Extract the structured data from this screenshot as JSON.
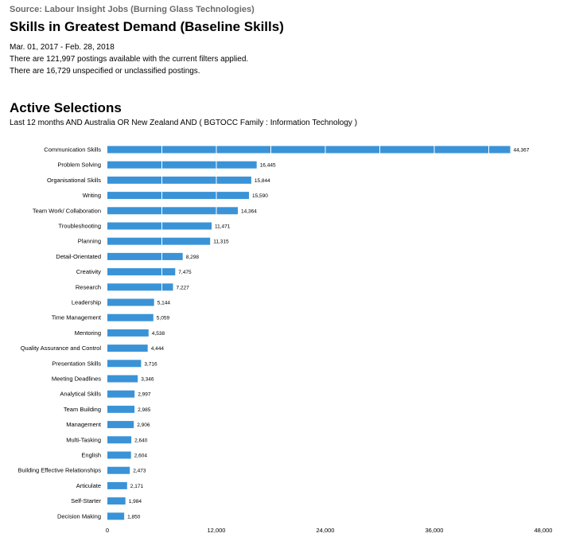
{
  "header": {
    "source": "Source: Labour Insight Jobs (Burning Glass Technologies)",
    "title": "Skills in Greatest Demand (Baseline Skills)",
    "date_range": "Mar.  01, 2017  - Feb.  28, 2018",
    "postings_available": "There are 121,997 postings available with the current filters applied.",
    "unclassified_postings": "There are 16,729 unspecified or unclassified postings."
  },
  "selections": {
    "title": "Active Selections",
    "text": "Last 12 months AND Australia OR New Zealand AND ( BGTOCC Family : Information Technology )"
  },
  "colors": {
    "bar": "#3a93d7",
    "gridline": "#ffffff"
  },
  "chart_data": {
    "type": "bar",
    "orientation": "horizontal",
    "categories": [
      "Communication Skills",
      "Problem Solving",
      "Organisational Skills",
      "Writing",
      "Team Work/ Collaboration",
      "Troubleshooting",
      "Planning",
      "Detail-Orientated",
      "Creativity",
      "Research",
      "Leadership",
      "Time Management",
      "Mentoring",
      "Quality Assurance and Control",
      "Presentation Skills",
      "Meeting Deadlines",
      "Analytical Skills",
      "Team Building",
      "Management",
      "Multi-Tasking",
      "English",
      "Building Effective Relationships",
      "Articulate",
      "Self-Starter",
      "Decision Making"
    ],
    "values": [
      44367,
      16445,
      15844,
      15590,
      14364,
      11471,
      11315,
      8298,
      7475,
      7227,
      5144,
      5059,
      4538,
      4444,
      3716,
      3346,
      2997,
      2985,
      2906,
      2640,
      2604,
      2473,
      2171,
      1984,
      1850
    ],
    "value_labels": [
      "44,367",
      "16,445",
      "15,844",
      "15,590",
      "14,364",
      "11,471",
      "11,315",
      "8,298",
      "7,475",
      "7,227",
      "5,144",
      "5,059",
      "4,538",
      "4,444",
      "3,716",
      "3,346",
      "2,997",
      "2,985",
      "2,906",
      "2,640",
      "2,604",
      "2,473",
      "2,171",
      "1,984",
      "1,850"
    ],
    "xlim": [
      0,
      48000
    ],
    "xticks": [
      0,
      12000,
      24000,
      36000,
      48000
    ],
    "xtick_labels": [
      "0",
      "12,000",
      "24,000",
      "36,000",
      "48,000"
    ],
    "gridlines": true,
    "legend": "none"
  }
}
